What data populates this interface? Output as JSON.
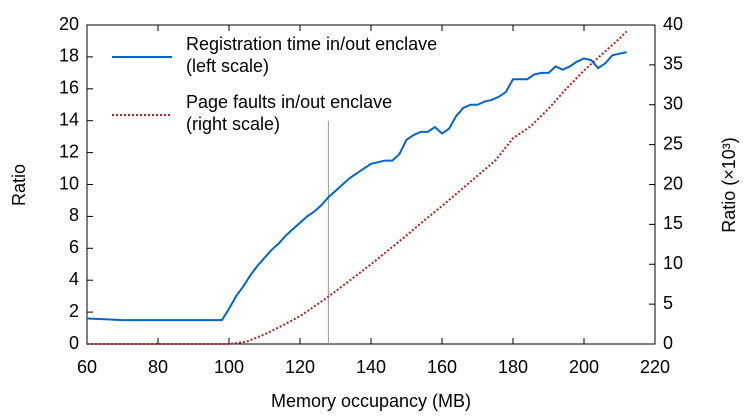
{
  "chart_data": {
    "type": "line",
    "x_label": "Memory occupancy (MB)",
    "y_label": "Ratio",
    "y2_label": "Ratio (×10³)",
    "xlim": [
      60,
      220
    ],
    "xticks": [
      60,
      80,
      100,
      120,
      140,
      160,
      180,
      200,
      220
    ],
    "ylim": [
      0,
      20
    ],
    "yticks": [
      0,
      2,
      4,
      6,
      8,
      10,
      12,
      14,
      16,
      18,
      20
    ],
    "y2lim": [
      0,
      40
    ],
    "y2ticks": [
      0,
      5,
      10,
      15,
      20,
      25,
      30,
      35,
      40
    ],
    "legend": "upper-left",
    "reference_line": {
      "x": 128,
      "y": 14
    },
    "series": [
      {
        "name": "Registration time in/out enclave\n(left scale)",
        "color": "#0066cc",
        "style": "solid",
        "x": [
          60,
          65,
          70,
          75,
          80,
          85,
          90,
          95,
          98,
          100,
          102,
          104,
          106,
          108,
          110,
          112,
          114,
          116,
          118,
          120,
          122,
          124,
          126,
          128,
          130,
          132,
          134,
          136,
          138,
          140,
          142,
          144,
          146,
          148,
          150,
          152,
          154,
          156,
          158,
          160,
          162,
          164,
          166,
          168,
          170,
          172,
          174,
          176,
          178,
          180,
          182,
          184,
          186,
          188,
          190,
          192,
          194,
          196,
          198,
          200,
          202,
          204,
          206,
          208,
          210,
          212
        ],
        "values": [
          1.6,
          1.55,
          1.5,
          1.5,
          1.5,
          1.5,
          1.5,
          1.5,
          1.5,
          2.2,
          3.0,
          3.6,
          4.3,
          4.9,
          5.4,
          5.9,
          6.3,
          6.8,
          7.2,
          7.6,
          8.0,
          8.3,
          8.7,
          9.2,
          9.6,
          10.0,
          10.4,
          10.7,
          11.0,
          11.3,
          11.4,
          11.5,
          11.5,
          11.9,
          12.8,
          13.1,
          13.3,
          13.3,
          13.6,
          13.2,
          13.5,
          14.3,
          14.8,
          15.0,
          15.0,
          15.2,
          15.3,
          15.5,
          15.8,
          16.6,
          16.6,
          16.6,
          16.9,
          17.0,
          17.0,
          17.4,
          17.2,
          17.4,
          17.7,
          17.9,
          17.8,
          17.3,
          17.6,
          18.1,
          18.2,
          18.3
        ]
      },
      {
        "name": "Page faults in/out enclave\n(right scale)",
        "color": "#b22222",
        "style": "dotted",
        "axis": "y2",
        "x": [
          60,
          80,
          100,
          105,
          110,
          115,
          120,
          125,
          130,
          135,
          140,
          145,
          150,
          155,
          160,
          165,
          170,
          175,
          180,
          185,
          190,
          195,
          200,
          205,
          210,
          212
        ],
        "values": [
          0,
          0,
          0,
          0.3,
          1.2,
          2.3,
          3.5,
          5.0,
          6.6,
          8.3,
          10.0,
          11.8,
          13.6,
          15.5,
          17.3,
          19.2,
          21.1,
          23.0,
          25.8,
          27.3,
          29.5,
          32.0,
          34.3,
          36.3,
          38.3,
          39.2
        ]
      }
    ]
  }
}
